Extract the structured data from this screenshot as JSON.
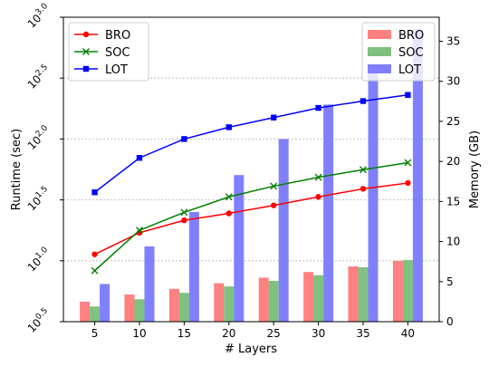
{
  "chart_data": {
    "type": "bar+line",
    "x": [
      5,
      10,
      15,
      20,
      25,
      30,
      35,
      40
    ],
    "xlabel": "# Layers",
    "xticks": [
      "5",
      "10",
      "15",
      "20",
      "25",
      "30",
      "35",
      "40"
    ],
    "left_axis": {
      "ylabel": "Runtime (sec)",
      "scale": "log10",
      "ylim_exponent": [
        0.5,
        3.0
      ],
      "tick_exponents": [
        0.5,
        1.0,
        1.5,
        2.0,
        2.5,
        3.0
      ],
      "tick_base": "10",
      "tick_exponent_labels": [
        "0.5",
        "1.0",
        "1.5",
        "2.0",
        "2.5",
        "3.0"
      ],
      "grid": true
    },
    "right_axis": {
      "ylabel": "Memory (GB)",
      "ylim": [
        0,
        38
      ],
      "ticks": [
        0,
        5,
        10,
        15,
        20,
        25,
        30,
        35
      ]
    },
    "line_series": [
      {
        "name": "BRO",
        "color": "#ff0000",
        "marker": "circle",
        "values": [
          11.3,
          17.0,
          21.5,
          24.5,
          28.5,
          33.5,
          39.0,
          43.5
        ]
      },
      {
        "name": "SOC",
        "color": "#008000",
        "marker": "x",
        "values": [
          8.3,
          17.8,
          25.0,
          33.5,
          41.0,
          48.5,
          56.0,
          64.0
        ]
      },
      {
        "name": "LOT",
        "color": "#0000ff",
        "marker": "square",
        "values": [
          36.5,
          70.0,
          100.0,
          125.0,
          150.0,
          180.0,
          205.0,
          230.0
        ]
      }
    ],
    "bar_series": [
      {
        "name": "BRO",
        "color": "#ff8080",
        "values": [
          2.5,
          3.4,
          4.1,
          4.8,
          5.5,
          6.2,
          6.9,
          7.6
        ]
      },
      {
        "name": "SOC",
        "color": "#80c080",
        "values": [
          1.9,
          2.8,
          3.6,
          4.4,
          5.1,
          5.8,
          6.8,
          7.7
        ]
      },
      {
        "name": "LOT",
        "color": "#8080ff",
        "values": [
          4.7,
          9.4,
          13.7,
          18.3,
          22.8,
          27.1,
          32.0,
          36.5
        ]
      }
    ],
    "legends": {
      "lines_position": "top-left",
      "bars_position": "top-right"
    }
  }
}
